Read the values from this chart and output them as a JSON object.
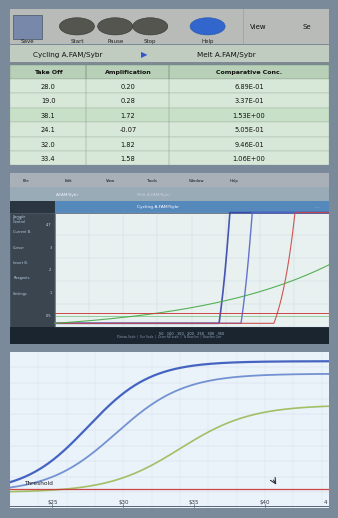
{
  "toolbar_bg": "#c8ccc8",
  "tab_bg": "#c0ccc0",
  "tab1": "Cycling A.FAM/Sybr",
  "tab2": "Melt A.FAM/Sybr",
  "table_headers": [
    "Take Off",
    "Amplification",
    "Comparative Conc."
  ],
  "table_rows": [
    [
      "28.0",
      "0.20",
      "6.89E-01"
    ],
    [
      "19.0",
      "0.28",
      "3.37E-01"
    ],
    [
      "38.1",
      "1.72",
      "1.53E+00"
    ],
    [
      "24.1",
      "-0.07",
      "5.05E-01"
    ],
    [
      "32.0",
      "1.82",
      "9.46E-01"
    ],
    [
      "33.4",
      "1.58",
      "1.06E+00"
    ]
  ],
  "highlighted_row": 2,
  "table_row_bg": "#d8e8d8",
  "table_row_bg_highlight": "#c8e0c8",
  "table_header_bg": "#b8d0b8",
  "panel2_outer_bg": "#2a3540",
  "panel2_inner_bg": "#e8f0f0",
  "panel2_menu_bg": "#3a4550",
  "panel2_topbar_bg": "#5588bb",
  "panel2_curve1": "#3344aa",
  "panel2_curve2": "#5566cc",
  "panel2_curve3": "#cc4444",
  "panel2_curve4": "#44aa44",
  "panel3_bg": "#e8eff8",
  "panel3_curve1": "#3355bb",
  "panel3_curve2": "#6688cc",
  "panel3_curve3": "#99bb55",
  "threshold_color": "#cc3333",
  "threshold_label": "Threshold",
  "overall_bg": "#7a8a9a"
}
